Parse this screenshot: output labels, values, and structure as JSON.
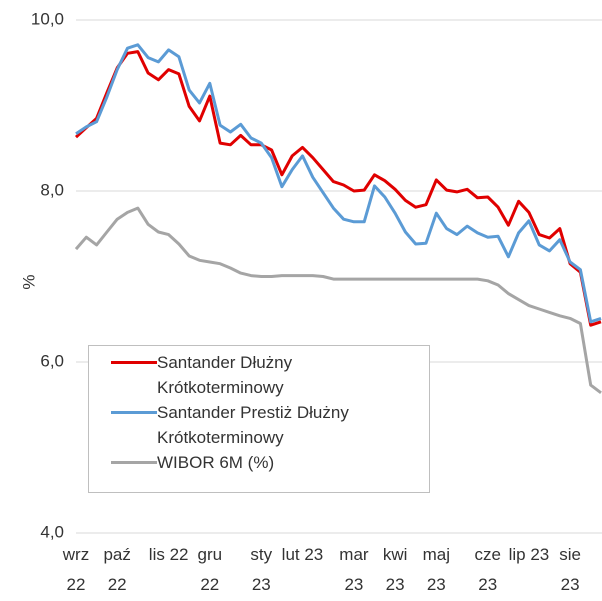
{
  "chart_data": {
    "type": "line",
    "ylabel": "%",
    "categories": [
      "wrz 22",
      null,
      null,
      null,
      "paź 22",
      null,
      null,
      null,
      null,
      "lis 22",
      null,
      null,
      null,
      "gru 22",
      null,
      null,
      null,
      null,
      "sty 23",
      null,
      null,
      null,
      "lut 23",
      null,
      null,
      null,
      null,
      "mar 23",
      null,
      null,
      null,
      "kwi 23",
      null,
      null,
      null,
      "maj 23",
      null,
      null,
      null,
      null,
      "cze 23",
      null,
      null,
      null,
      "lip 23",
      null,
      null,
      null,
      "sie 23",
      null,
      null,
      null
    ],
    "series": [
      {
        "name": "Santander Dłużny Krótkoterminowy",
        "color": "#e00000",
        "values": [
          8.63,
          8.74,
          8.85,
          9.15,
          9.44,
          9.61,
          9.63,
          9.38,
          9.3,
          9.42,
          9.37,
          8.99,
          8.82,
          9.11,
          8.56,
          8.54,
          8.65,
          8.54,
          8.54,
          8.48,
          8.19,
          8.41,
          8.51,
          8.39,
          8.25,
          8.11,
          8.07,
          8.0,
          8.01,
          8.19,
          8.12,
          8.02,
          7.89,
          7.81,
          7.84,
          8.13,
          8.01,
          7.99,
          8.02,
          7.92,
          7.93,
          7.81,
          7.6,
          7.88,
          7.75,
          7.49,
          7.45,
          7.56,
          7.15,
          7.05,
          6.43,
          6.47
        ]
      },
      {
        "name": "Santander Prestiż Dłużny Krótkoterminowy",
        "color": "#5b9bd5",
        "values": [
          8.67,
          8.75,
          8.81,
          9.1,
          9.42,
          9.67,
          9.71,
          9.56,
          9.51,
          9.65,
          9.57,
          9.18,
          9.03,
          9.26,
          8.77,
          8.69,
          8.78,
          8.62,
          8.56,
          8.39,
          8.05,
          8.25,
          8.41,
          8.16,
          7.98,
          7.8,
          7.67,
          7.64,
          7.64,
          8.06,
          7.93,
          7.74,
          7.52,
          7.38,
          7.39,
          7.74,
          7.56,
          7.49,
          7.59,
          7.51,
          7.46,
          7.47,
          7.23,
          7.51,
          7.65,
          7.37,
          7.3,
          7.43,
          7.17,
          7.08,
          6.47,
          6.51
        ]
      },
      {
        "name": "WIBOR 6M (%)",
        "color": "#a5a5a5",
        "values": [
          7.32,
          7.46,
          7.37,
          7.52,
          7.67,
          7.75,
          7.8,
          7.61,
          7.52,
          7.49,
          7.38,
          7.24,
          7.19,
          7.17,
          7.15,
          7.1,
          7.04,
          7.01,
          7.0,
          7.0,
          7.01,
          7.01,
          7.01,
          7.01,
          7.0,
          6.97,
          6.97,
          6.97,
          6.97,
          6.97,
          6.97,
          6.97,
          6.97,
          6.97,
          6.97,
          6.97,
          6.97,
          6.97,
          6.97,
          6.97,
          6.95,
          6.9,
          6.8,
          6.73,
          6.66,
          6.62,
          6.58,
          6.54,
          6.51,
          6.45,
          5.73,
          5.64
        ]
      }
    ],
    "ylim": [
      4,
      10
    ],
    "yticks": [
      {
        "value": 4,
        "label": "4,0"
      },
      {
        "value": 6,
        "label": "6,0"
      },
      {
        "value": 8,
        "label": "8,0"
      },
      {
        "value": 10,
        "label": "10,0"
      }
    ],
    "grid": true
  }
}
